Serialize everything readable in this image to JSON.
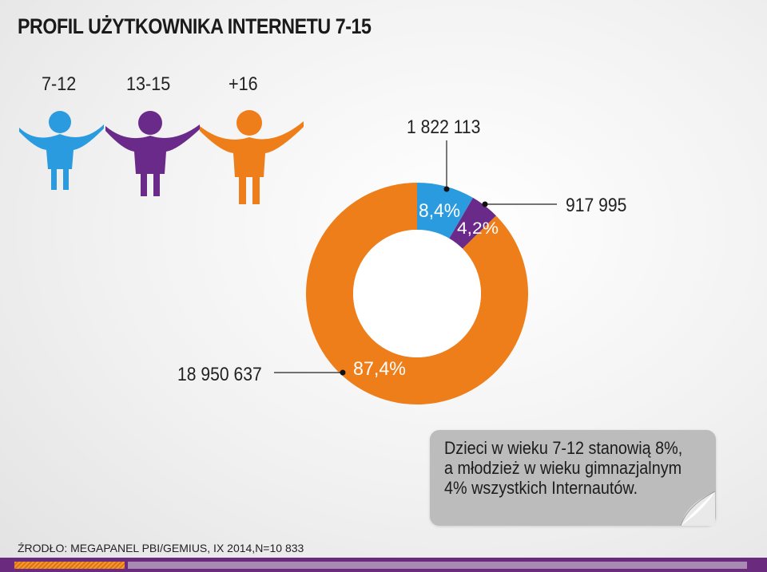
{
  "header": {
    "title": "PROFIL UŻYTKOWNIKA INTERNETU 7-15"
  },
  "age_groups": [
    {
      "label": "7-12",
      "color": "#2b9be0",
      "icon": "person-icon"
    },
    {
      "label": "13-15",
      "color": "#6a2a8a",
      "icon": "person-icon"
    },
    {
      "label": "+16",
      "color": "#ee7e1a",
      "icon": "person-icon"
    }
  ],
  "chart_data": {
    "type": "pie",
    "variant": "donut",
    "slices": [
      {
        "label": "8,4%",
        "value": 8.4,
        "count": "1 822 113",
        "color": "#2b9be0"
      },
      {
        "label": "4,2%",
        "value": 4.2,
        "count": "917 995",
        "color": "#6a2a8a"
      },
      {
        "label": "87,4%",
        "value": 87.4,
        "count": "18 950 637",
        "color": "#ee7e1a"
      }
    ]
  },
  "note": {
    "lines": [
      "Dzieci w wieku 7-12 stanowią 8%,",
      "a młodzież w wieku gimnazjalnym",
      "4% wszystkich Internautów."
    ]
  },
  "source": "ŹRODŁO: MEGAPANEL PBI/GEMIUS, IX 2014,N=10 833"
}
